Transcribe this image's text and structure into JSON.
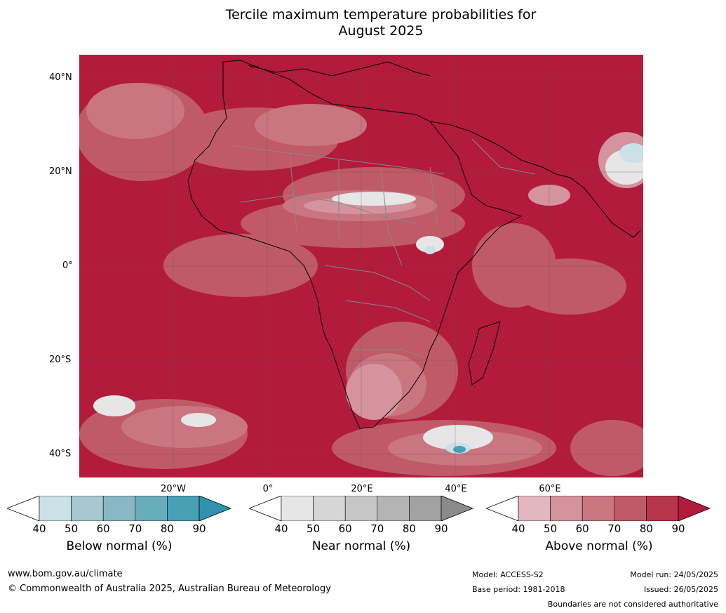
{
  "title_line1": "Tercile maximum temperature probabilities for",
  "title_line2": "August 2025",
  "latitude_labels": [
    "40°N",
    "20°N",
    "0°",
    "20°S",
    "40°S"
  ],
  "longitude_labels": [
    "20°W",
    "0°",
    "20°E",
    "40°E",
    "60°E"
  ],
  "colorbars": [
    {
      "label": "Below normal (%)",
      "ticks": [
        "40",
        "50",
        "60",
        "70",
        "80",
        "90"
      ],
      "colors": [
        "#ffffff",
        "#c9e1e7",
        "#a7c8cf",
        "#89b8c4",
        "#69adba",
        "#48a1b3",
        "#2f93ad"
      ]
    },
    {
      "label": "Near normal (%)",
      "ticks": [
        "40",
        "50",
        "60",
        "70",
        "80",
        "90"
      ],
      "colors": [
        "#ffffff",
        "#e6e6e6",
        "#d6d6d6",
        "#c6c6c6",
        "#b4b4b4",
        "#a2a2a2",
        "#8a8a8a"
      ]
    },
    {
      "label": "Above normal (%)",
      "ticks": [
        "40",
        "50",
        "60",
        "70",
        "80",
        "90"
      ],
      "colors": [
        "#ffffff",
        "#e2b7bd",
        "#d4939d",
        "#c97681",
        "#c05a68",
        "#b7364c",
        "#b21b3b"
      ]
    }
  ],
  "footer": {
    "website": "www.bom.gov.au/climate",
    "copyright": "© Commonwealth of Australia 2025, Australian Bureau of Meteorology",
    "model": "Model: ACCESS-S2",
    "base_period": "Base period: 1981-2018",
    "model_run": "Model run: 24/05/2025",
    "issued": "Issued: 26/05/2025",
    "disclaimer": "Boundaries are not considered authoritative"
  }
}
